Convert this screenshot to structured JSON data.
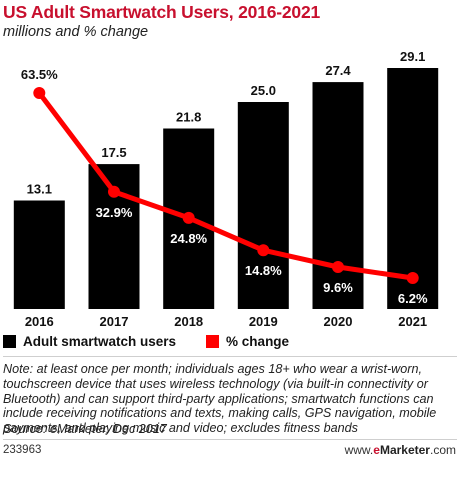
{
  "header": {
    "title": "US Adult Smartwatch Users, 2016-2021",
    "subtitle": "millions and % change"
  },
  "chart_data": {
    "type": "bar",
    "categories": [
      "2016",
      "2017",
      "2018",
      "2019",
      "2020",
      "2021"
    ],
    "series": [
      {
        "name": "Adult smartwatch users",
        "kind": "bar",
        "color": "#000000",
        "values": [
          13.1,
          17.5,
          21.8,
          25.0,
          27.4,
          29.1
        ],
        "labels": [
          "13.1",
          "17.5",
          "21.8",
          "25.0",
          "27.4",
          "29.1"
        ]
      },
      {
        "name": "% change",
        "kind": "line",
        "color": "#ff0000",
        "values": [
          63.5,
          32.9,
          24.8,
          14.8,
          9.6,
          6.2
        ],
        "labels": [
          "63.5%",
          "32.9%",
          "24.8%",
          "14.8%",
          "9.6%",
          "6.2%"
        ]
      }
    ],
    "ylim_bar": [
      0,
      29.1
    ],
    "ylim_line": [
      0,
      70
    ],
    "grid": false,
    "legend_position": "bottom-left"
  },
  "legend": {
    "bar_label": "Adult smartwatch users",
    "line_label": "% change"
  },
  "note": {
    "text": "Note: at least once per month; individuals ages 18+ who wear a wrist-worn, touchscreen device that uses wireless technology (via built-in connectivity or Bluetooth) and can support third-party applications; smartwatch functions can include receiving notifications and texts, making calls, GPS navigation, mobile payments, and playing music and video; excludes fitness bands",
    "source": "Source: eMarketer, Dec 2017"
  },
  "footer": {
    "chart_id": "233963",
    "brand_prefix": "www.",
    "brand_e": "e",
    "brand_name": "Marketer",
    "brand_suffix": ".com"
  }
}
